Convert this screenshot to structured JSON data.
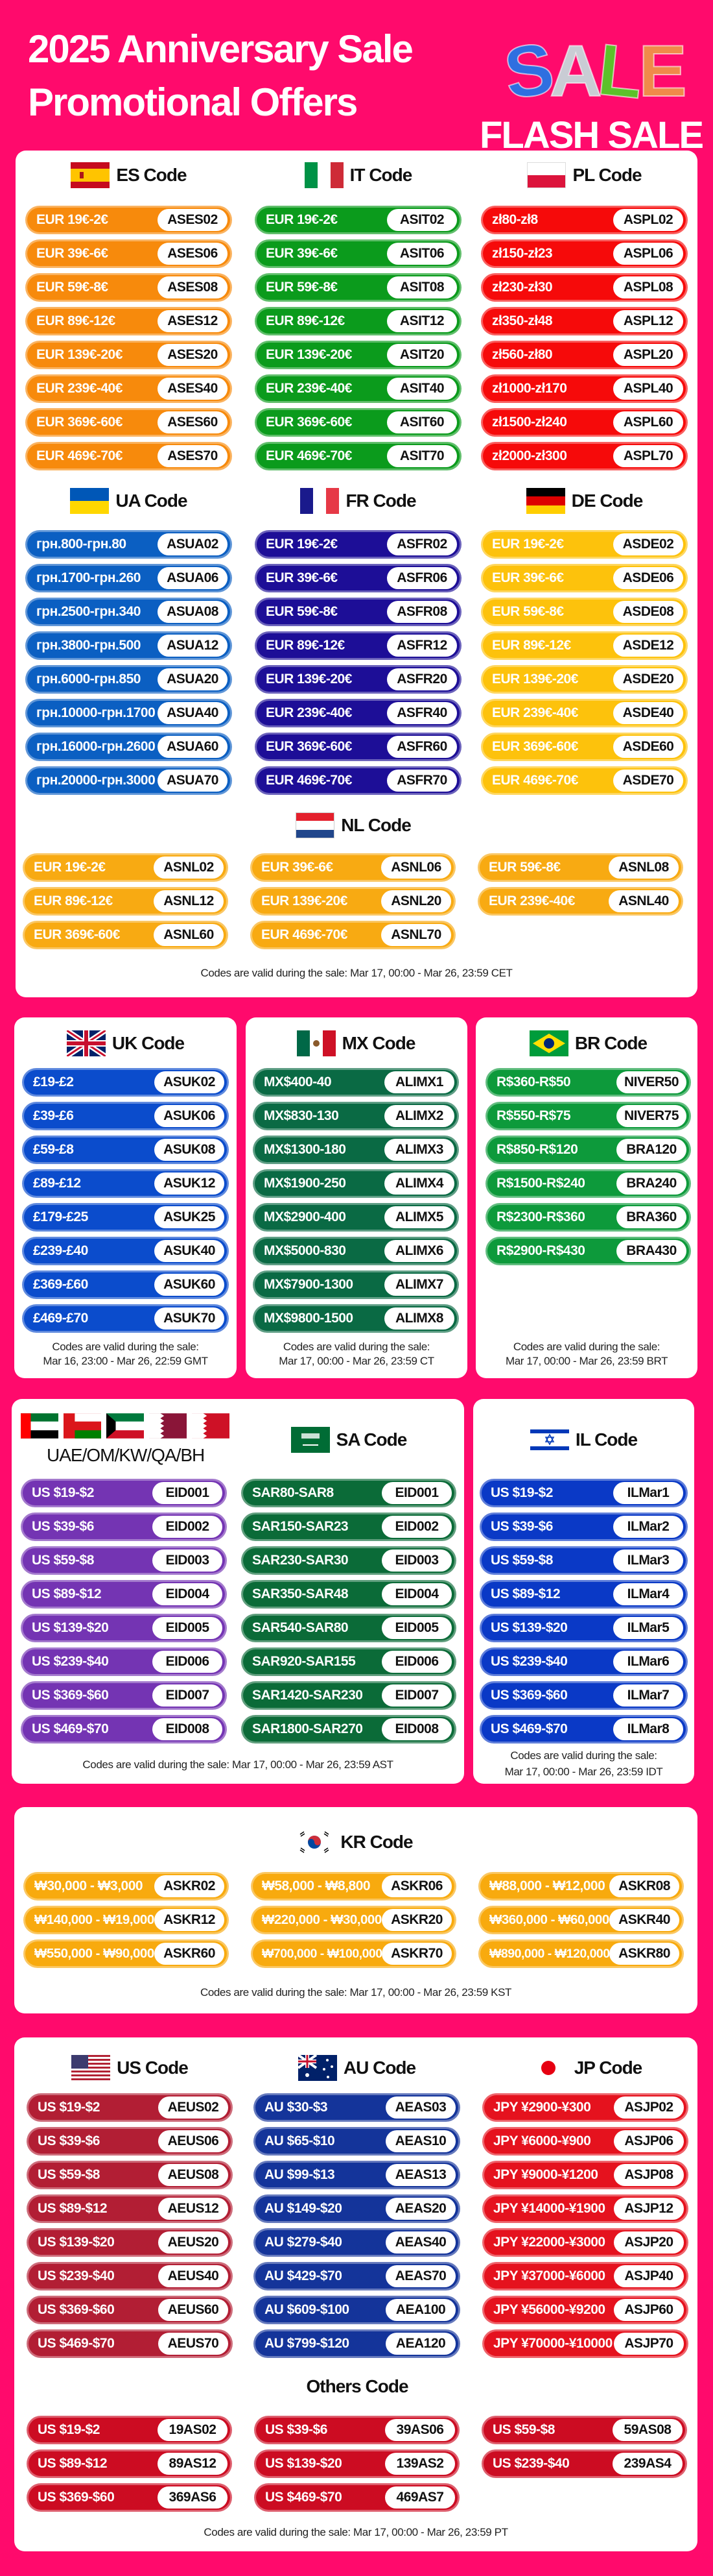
{
  "header": {
    "title_line1": "2025 Anniversary Sale",
    "title_line2": "Promotional Offers",
    "sale_art": "SALE",
    "flash_sale": "FLASH SALE"
  },
  "groups": {
    "es": {
      "title": "ES Code",
      "flags": [
        "flag-es"
      ],
      "color": "#f78a0c",
      "rows": [
        {
          "range": "EUR 19€-2€",
          "code": "ASES02"
        },
        {
          "range": "EUR 39€-6€",
          "code": "ASES06"
        },
        {
          "range": "EUR 59€-8€",
          "code": "ASES08"
        },
        {
          "range": "EUR 89€-12€",
          "code": "ASES12"
        },
        {
          "range": "EUR 139€-20€",
          "code": "ASES20"
        },
        {
          "range": "EUR 239€-40€",
          "code": "ASES40"
        },
        {
          "range": "EUR 369€-60€",
          "code": "ASES60"
        },
        {
          "range": "EUR 469€-70€",
          "code": "ASES70"
        }
      ]
    },
    "it": {
      "title": "IT Code",
      "flags": [
        "flag-it"
      ],
      "color": "#0b9b1c",
      "rows": [
        {
          "range": "EUR 19€-2€",
          "code": "ASIT02"
        },
        {
          "range": "EUR 39€-6€",
          "code": "ASIT06"
        },
        {
          "range": "EUR 59€-8€",
          "code": "ASIT08"
        },
        {
          "range": "EUR 89€-12€",
          "code": "ASIT12"
        },
        {
          "range": "EUR 139€-20€",
          "code": "ASIT20"
        },
        {
          "range": "EUR 239€-40€",
          "code": "ASIT40"
        },
        {
          "range": "EUR 369€-60€",
          "code": "ASIT60"
        },
        {
          "range": "EUR 469€-70€",
          "code": "ASIT70"
        }
      ]
    },
    "pl": {
      "title": "PL Code",
      "flags": [
        "flag-pl"
      ],
      "color": "#f60a0a",
      "rows": [
        {
          "range": "zł80-zł8",
          "code": "ASPL02"
        },
        {
          "range": "zł150-zł23",
          "code": "ASPL06"
        },
        {
          "range": "zł230-zł30",
          "code": "ASPL08"
        },
        {
          "range": "zł350-zł48",
          "code": "ASPL12"
        },
        {
          "range": "zł560-zł80",
          "code": "ASPL20"
        },
        {
          "range": "zł1000-zł170",
          "code": "ASPL40"
        },
        {
          "range": "zł1500-zł240",
          "code": "ASPL60"
        },
        {
          "range": "zł2000-zł300",
          "code": "ASPL70"
        }
      ]
    },
    "ua": {
      "title": "UA Code",
      "flags": [
        "flag-ua"
      ],
      "color": "#0b5fc2",
      "rows": [
        {
          "range": "грн.800-грн.80",
          "code": "ASUA02"
        },
        {
          "range": "грн.1700-грн.260",
          "code": "ASUA06"
        },
        {
          "range": "грн.2500-грн.340",
          "code": "ASUA08"
        },
        {
          "range": "грн.3800-грн.500",
          "code": "ASUA12"
        },
        {
          "range": "грн.6000-грн.850",
          "code": "ASUA20"
        },
        {
          "range": "грн.10000-грн.1700",
          "code": "ASUA40"
        },
        {
          "range": "грн.16000-грн.2600",
          "code": "ASUA60"
        },
        {
          "range": "грн.20000-грн.3000",
          "code": "ASUA70"
        }
      ]
    },
    "fr": {
      "title": "FR Code",
      "flags": [
        "flag-fr"
      ],
      "color": "#1d0e97",
      "rows": [
        {
          "range": "EUR 19€-2€",
          "code": "ASFR02"
        },
        {
          "range": "EUR 39€-6€",
          "code": "ASFR06"
        },
        {
          "range": "EUR 59€-8€",
          "code": "ASFR08"
        },
        {
          "range": "EUR 89€-12€",
          "code": "ASFR12"
        },
        {
          "range": "EUR 139€-20€",
          "code": "ASFR20"
        },
        {
          "range": "EUR 239€-40€",
          "code": "ASFR40"
        },
        {
          "range": "EUR 369€-60€",
          "code": "ASFR60"
        },
        {
          "range": "EUR 469€-70€",
          "code": "ASFR70"
        }
      ]
    },
    "de": {
      "title": "DE Code",
      "flags": [
        "flag-de"
      ],
      "color": "#fdc20c",
      "rows": [
        {
          "range": "EUR 19€-2€",
          "code": "ASDE02"
        },
        {
          "range": "EUR 39€-6€",
          "code": "ASDE06"
        },
        {
          "range": "EUR 59€-8€",
          "code": "ASDE08"
        },
        {
          "range": "EUR 89€-12€",
          "code": "ASDE12"
        },
        {
          "range": "EUR 139€-20€",
          "code": "ASDE20"
        },
        {
          "range": "EUR 239€-40€",
          "code": "ASDE40"
        },
        {
          "range": "EUR 369€-60€",
          "code": "ASDE60"
        },
        {
          "range": "EUR 469€-70€",
          "code": "ASDE70"
        }
      ]
    },
    "nl": {
      "title": "NL Code",
      "flags": [
        "flag-nl"
      ],
      "color": "#f8aa12",
      "rows": [
        {
          "range": "EUR 19€-2€",
          "code": "ASNL02"
        },
        {
          "range": "EUR 39€-6€",
          "code": "ASNL06"
        },
        {
          "range": "EUR 59€-8€",
          "code": "ASNL08"
        },
        {
          "range": "EUR 89€-12€",
          "code": "ASNL12"
        },
        {
          "range": "EUR 139€-20€",
          "code": "ASNL20"
        },
        {
          "range": "EUR 239€-40€",
          "code": "ASNL40"
        },
        {
          "range": "EUR 369€-60€",
          "code": "ASNL60"
        },
        {
          "range": "EUR 469€-70€",
          "code": "ASNL70"
        }
      ]
    },
    "uk": {
      "title": "UK Code",
      "flags": [
        "flag-gb"
      ],
      "color": "#0b4ccc",
      "rows": [
        {
          "range": "£19-£2",
          "code": "ASUK02"
        },
        {
          "range": "£39-£6",
          "code": "ASUK06"
        },
        {
          "range": "£59-£8",
          "code": "ASUK08"
        },
        {
          "range": "£89-£12",
          "code": "ASUK12"
        },
        {
          "range": "£179-£25",
          "code": "ASUK25"
        },
        {
          "range": "£239-£40",
          "code": "ASUK40"
        },
        {
          "range": "£369-£60",
          "code": "ASUK60"
        },
        {
          "range": "£469-£70",
          "code": "ASUK70"
        }
      ]
    },
    "mx": {
      "title": "MX Code",
      "flags": [
        "flag-mx"
      ],
      "color": "#0a6a44",
      "rows": [
        {
          "range": "MX$400-40",
          "code": "ALIMX1"
        },
        {
          "range": "MX$830-130",
          "code": "ALIMX2"
        },
        {
          "range": "MX$1300-180",
          "code": "ALIMX3"
        },
        {
          "range": "MX$1900-250",
          "code": "ALIMX4"
        },
        {
          "range": "MX$2900-400",
          "code": "ALIMX5"
        },
        {
          "range": "MX$5000-830",
          "code": "ALIMX6"
        },
        {
          "range": "MX$7900-1300",
          "code": "ALIMX7"
        },
        {
          "range": "MX$9800-1500",
          "code": "ALIMX8"
        }
      ]
    },
    "br": {
      "title": "BR Code",
      "flags": [
        "flag-br"
      ],
      "color": "#0d9a3b",
      "rows": [
        {
          "range": "R$360-R$50",
          "code": "NIVER50"
        },
        {
          "range": "R$550-R$75",
          "code": "NIVER75"
        },
        {
          "range": "R$850-R$120",
          "code": "BRA120"
        },
        {
          "range": "R$1500-R$240",
          "code": "BRA240"
        },
        {
          "range": "R$2300-R$360",
          "code": "BRA360"
        },
        {
          "range": "R$2900-R$430",
          "code": "BRA430"
        }
      ]
    },
    "gcc": {
      "title": "UAE/OM/KW/QA/BH",
      "flags": [
        "flag-ae",
        "flag-om",
        "flag-kw",
        "flag-qa",
        "flag-bh"
      ],
      "color": "#7434b3",
      "rows": [
        {
          "range": "US $19-$2",
          "code": "EID001"
        },
        {
          "range": "US $39-$6",
          "code": "EID002"
        },
        {
          "range": "US $59-$8",
          "code": "EID003"
        },
        {
          "range": "US $89-$12",
          "code": "EID004"
        },
        {
          "range": "US $139-$20",
          "code": "EID005"
        },
        {
          "range": "US $239-$40",
          "code": "EID006"
        },
        {
          "range": "US $369-$60",
          "code": "EID007"
        },
        {
          "range": "US $469-$70",
          "code": "EID008"
        }
      ]
    },
    "sa": {
      "title": "SA Code",
      "flags": [
        "flag-sa"
      ],
      "color": "#0b6b38",
      "rows": [
        {
          "range": "SAR80-SAR8",
          "code": "EID001"
        },
        {
          "range": "SAR150-SAR23",
          "code": "EID002"
        },
        {
          "range": "SAR230-SAR30",
          "code": "EID003"
        },
        {
          "range": "SAR350-SAR48",
          "code": "EID004"
        },
        {
          "range": "SAR540-SAR80",
          "code": "EID005"
        },
        {
          "range": "SAR920-SAR155",
          "code": "EID006"
        },
        {
          "range": "SAR1420-SAR230",
          "code": "EID007"
        },
        {
          "range": "SAR1800-SAR270",
          "code": "EID008"
        }
      ]
    },
    "il": {
      "title": "IL Code",
      "flags": [
        "flag-il"
      ],
      "color": "#0a39c6",
      "rows": [
        {
          "range": "US $19-$2",
          "code": "ILMar1"
        },
        {
          "range": "US $39-$6",
          "code": "ILMar2"
        },
        {
          "range": "US $59-$8",
          "code": "ILMar3"
        },
        {
          "range": "US $89-$12",
          "code": "ILMar4"
        },
        {
          "range": "US $139-$20",
          "code": "ILMar5"
        },
        {
          "range": "US $239-$40",
          "code": "ILMar6"
        },
        {
          "range": "US $369-$60",
          "code": "ILMar7"
        },
        {
          "range": "US $469-$70",
          "code": "ILMar8"
        }
      ]
    },
    "kr": {
      "title": "KR Code",
      "flags": [
        "flag-kr"
      ],
      "color": "#f8aa0e",
      "rows": [
        {
          "range": "₩30,000 - ₩3,000",
          "code": "ASKR02"
        },
        {
          "range": "₩58,000 - ₩8,800",
          "code": "ASKR06"
        },
        {
          "range": "₩88,000 - ₩12,000",
          "code": "ASKR08"
        },
        {
          "range": "₩140,000 - ₩19,000",
          "code": "ASKR12"
        },
        {
          "range": "₩220,000 - ₩30,000",
          "code": "ASKR20"
        },
        {
          "range": "₩360,000 - ₩60,000",
          "code": "ASKR40"
        },
        {
          "range": "₩550,000 - ₩90,000",
          "code": "ASKR60"
        },
        {
          "range": "₩700,000 - ₩100,000",
          "code": "ASKR70"
        },
        {
          "range": "₩890,000 - ₩120,000",
          "code": "ASKR80"
        }
      ]
    },
    "us": {
      "title": "US Code",
      "flags": [
        "flag-us"
      ],
      "color": "#b21e34",
      "rows": [
        {
          "range": "US $19-$2",
          "code": "AEUS02"
        },
        {
          "range": "US $39-$6",
          "code": "AEUS06"
        },
        {
          "range": "US $59-$8",
          "code": "AEUS08"
        },
        {
          "range": "US $89-$12",
          "code": "AEUS12"
        },
        {
          "range": "US $139-$20",
          "code": "AEUS20"
        },
        {
          "range": "US $239-$40",
          "code": "AEUS40"
        },
        {
          "range": "US $369-$60",
          "code": "AEUS60"
        },
        {
          "range": "US $469-$70",
          "code": "AEUS70"
        }
      ]
    },
    "au": {
      "title": "AU Code",
      "flags": [
        "flag-au"
      ],
      "color": "#14349a",
      "rows": [
        {
          "range": "AU $30-$3",
          "code": "AEAS03"
        },
        {
          "range": "AU $65-$10",
          "code": "AEAS10"
        },
        {
          "range": "AU $99-$13",
          "code": "AEAS13"
        },
        {
          "range": "AU $149-$20",
          "code": "AEAS20"
        },
        {
          "range": "AU $279-$40",
          "code": "AEAS40"
        },
        {
          "range": "AU $429-$70",
          "code": "AEAS70"
        },
        {
          "range": "AU $609-$100",
          "code": "AEA100"
        },
        {
          "range": "AU $799-$120",
          "code": "AEA120"
        }
      ]
    },
    "jp": {
      "title": "JP Code",
      "flags": [
        "flag-jp"
      ],
      "color": "#e5121e",
      "rows": [
        {
          "range": "JPY ¥2900-¥300",
          "code": "ASJP02"
        },
        {
          "range": "JPY ¥6000-¥900",
          "code": "ASJP06"
        },
        {
          "range": "JPY ¥9000-¥1200",
          "code": "ASJP08"
        },
        {
          "range": "JPY ¥14000-¥1900",
          "code": "ASJP12"
        },
        {
          "range": "JPY ¥22000-¥3000",
          "code": "ASJP20"
        },
        {
          "range": "JPY ¥37000-¥6000",
          "code": "ASJP40"
        },
        {
          "range": "JPY ¥56000-¥9200",
          "code": "ASJP60"
        },
        {
          "range": "JPY ¥70000-¥10000",
          "code": "ASJP70"
        }
      ]
    },
    "others": {
      "title": "Others Code",
      "flags": [],
      "color": "#cc0c22",
      "rows": [
        {
          "range": "US $19-$2",
          "code": "19AS02"
        },
        {
          "range": "US $39-$6",
          "code": "39AS06"
        },
        {
          "range": "US $59-$8",
          "code": "59AS08"
        },
        {
          "range": "US $89-$12",
          "code": "89AS12"
        },
        {
          "range": "US $139-$20",
          "code": "139AS2"
        },
        {
          "range": "US $239-$40",
          "code": "239AS4"
        },
        {
          "range": "US $369-$60",
          "code": "369AS6"
        },
        {
          "range": "US $469-$70",
          "code": "469AS7"
        }
      ]
    }
  },
  "footnotes": {
    "europe": "Codes are valid during the sale: Mar 17, 00:00 - Mar 26, 23:59 CET",
    "uk": {
      "line1": "Codes are valid during the sale:",
      "line2": "Mar 16, 23:00 - Mar 26, 22:59 GMT"
    },
    "mx": {
      "line1": "Codes are valid during the sale:",
      "line2": "Mar 17, 00:00 - Mar 26, 23:59 CT"
    },
    "br": {
      "line1": "Codes are valid during the sale:",
      "line2": "Mar 17, 00:00 - Mar 26, 23:59 BRT"
    },
    "gcc_sa": "Codes are valid during the sale: Mar 17, 00:00 - Mar 26, 23:59 AST",
    "il": {
      "line1": "Codes are valid during the sale:",
      "line2": "Mar 17, 00:00 - Mar 26, 23:59 IDT"
    },
    "kr": "Codes are valid during the sale: Mar 17, 00:00 - Mar 26, 23:59 KST",
    "us": "Codes are valid during the sale: Mar 17, 00:00 - Mar 26, 23:59 PT"
  }
}
